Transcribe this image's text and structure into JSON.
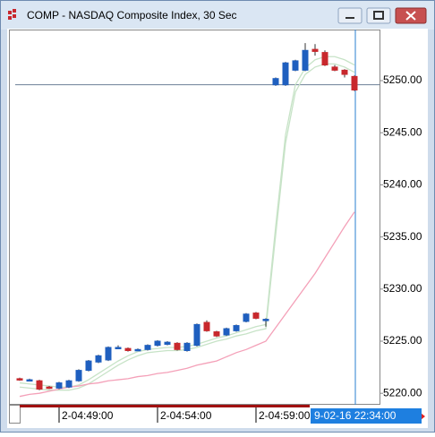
{
  "chart_data": {
    "type": "candlestick",
    "title": "COMP - NASDAQ Composite Index, 30 Sec",
    "categories": [
      null,
      null,
      null,
      null,
      "2-04:49:00",
      null,
      null,
      null,
      null,
      null,
      null,
      null,
      null,
      null,
      "2-04:54:00",
      null,
      null,
      null,
      null,
      null,
      null,
      null,
      null,
      null,
      "2-04:59:00",
      null,
      null,
      null,
      null,
      null,
      null,
      null,
      null,
      null,
      null
    ],
    "cursor_label": "9-02-16 22:34:00",
    "open": [
      5221.4,
      5221.3,
      5221.2,
      5220.6,
      5220.5,
      5220.6,
      5221.2,
      5222.2,
      5223.0,
      5223.2,
      5224.4,
      5224.3,
      5224.2,
      5224.2,
      5224.6,
      5224.7,
      5224.8,
      5224.1,
      5224.6,
      5226.8,
      5225.9,
      5225.6,
      5226.0,
      5226.9,
      5227.7,
      5227.0,
      5249.6,
      5249.6,
      5251.0,
      5251.0,
      5253.0,
      5252.7,
      5251.3,
      5251.0,
      5250.4
    ],
    "high": [
      5221.5,
      5221.4,
      5221.3,
      5220.7,
      5221.1,
      5221.3,
      5222.3,
      5223.2,
      5223.7,
      5224.5,
      5224.6,
      5224.4,
      5224.3,
      5224.7,
      5225.1,
      5225.0,
      5224.9,
      5224.9,
      5226.7,
      5227.0,
      5226.0,
      5226.3,
      5226.6,
      5227.7,
      5227.8,
      5227.2,
      5250.3,
      5251.8,
      5252.0,
      5253.6,
      5253.5,
      5252.9,
      5251.5,
      5251.1,
      5250.5
    ],
    "low": [
      5221.2,
      5221.2,
      5220.3,
      5220.4,
      5220.4,
      5220.5,
      5221.1,
      5222.1,
      5222.9,
      5223.1,
      5224.3,
      5224.0,
      5224.1,
      5224.1,
      5224.5,
      5224.6,
      5224.1,
      5224.0,
      5224.5,
      5225.9,
      5225.4,
      5225.5,
      5225.9,
      5226.8,
      5227.1,
      5226.4,
      5249.5,
      5249.5,
      5250.9,
      5250.9,
      5252.4,
      5251.4,
      5250.9,
      5250.3,
      5249.0
    ],
    "close": [
      5221.3,
      5221.3,
      5220.4,
      5220.5,
      5221.0,
      5221.2,
      5222.2,
      5223.1,
      5223.6,
      5224.4,
      5224.4,
      5224.1,
      5224.2,
      5224.6,
      5225.0,
      5224.9,
      5224.2,
      5224.8,
      5226.6,
      5226.0,
      5225.5,
      5226.2,
      5226.5,
      5227.6,
      5227.2,
      5227.1,
      5250.2,
      5251.7,
      5251.9,
      5252.9,
      5252.8,
      5251.5,
      5251.0,
      5250.6,
      5249.1
    ],
    "up_color": "#1f5fbf",
    "down_color": "#c8282d",
    "series": [
      {
        "color": "#c7e3c7",
        "values": [
          5221.0,
          5220.9,
          5220.8,
          5220.7,
          5220.6,
          5220.6,
          5220.8,
          5221.3,
          5221.9,
          5222.5,
          5223.1,
          5223.6,
          5224.0,
          5224.2,
          5224.3,
          5224.4,
          5224.4,
          5224.5,
          5224.7,
          5225.0,
          5225.3,
          5225.5,
          5225.8,
          5226.1,
          5226.4,
          5226.6,
          5236.0,
          5244.8,
          5249.6,
          5251.2,
          5252.0,
          5252.3,
          5252.3,
          5252.0,
          5251.5
        ]
      },
      {
        "color": "#c7e3c7",
        "values": [
          5220.6,
          5220.5,
          5220.4,
          5220.3,
          5220.3,
          5220.3,
          5220.5,
          5220.9,
          5221.5,
          5222.1,
          5222.7,
          5223.2,
          5223.6,
          5223.9,
          5224.0,
          5224.1,
          5224.1,
          5224.2,
          5224.4,
          5224.7,
          5225.0,
          5225.2,
          5225.5,
          5225.7,
          5226.0,
          5226.2,
          5235.2,
          5244.0,
          5248.9,
          5250.6,
          5251.3,
          5251.6,
          5251.6,
          5251.3,
          5250.8
        ]
      },
      {
        "color": "#f4a0b8",
        "values": [
          5219.7,
          5219.9,
          5220.0,
          5220.2,
          5220.4,
          5220.6,
          5220.7,
          5220.9,
          5221.0,
          5221.2,
          5221.3,
          5221.4,
          5221.6,
          5221.7,
          5221.9,
          5222.0,
          5222.2,
          5222.4,
          5222.7,
          5222.9,
          5223.1,
          5223.5,
          5223.9,
          5224.2,
          5224.6,
          5225.0,
          5226.3,
          5227.6,
          5228.9,
          5230.2,
          5231.5,
          5233.0,
          5234.5,
          5236.0,
          5237.4
        ]
      }
    ],
    "price_line": 5249.6,
    "ylim": [
      5218.9,
      5254.9
    ],
    "yticks": [
      {
        "value": 5220,
        "label": "5220.00"
      },
      {
        "value": 5225,
        "label": "5225.00"
      },
      {
        "value": 5230,
        "label": "5230.00"
      },
      {
        "value": 5235,
        "label": "5235.00"
      },
      {
        "value": 5240,
        "label": "5240.00"
      },
      {
        "value": 5245,
        "label": "5245.00"
      },
      {
        "value": 5250,
        "label": "5250.00"
      }
    ]
  }
}
